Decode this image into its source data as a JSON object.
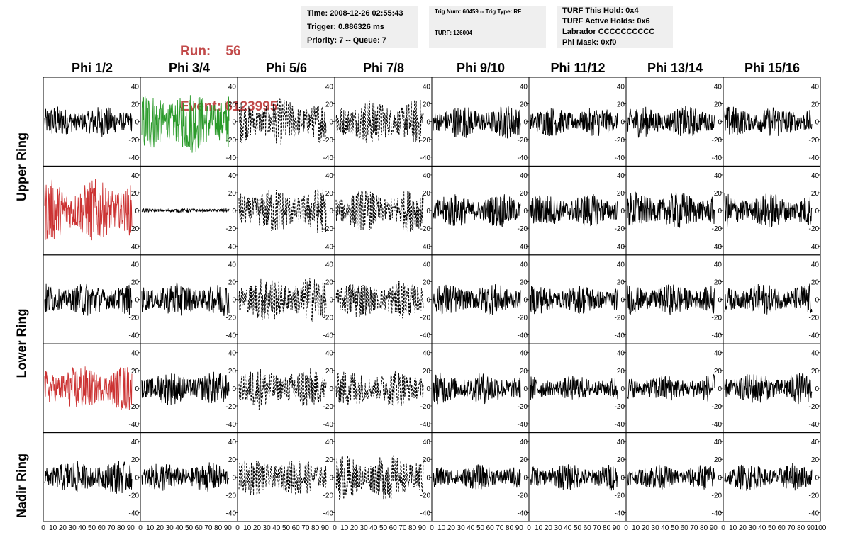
{
  "header": {
    "run_label": "Run:",
    "run_value": "56",
    "event_label": "Event:",
    "event_value": "6123995",
    "time_info": [
      "Time: 2008-12-26 02:55:43",
      "Trigger: 0.886326 ms",
      "Priority: 7 -- Queue: 7"
    ],
    "trig_info": [
      "Trig Num: 60459 -- Trig Type: RF",
      "",
      "TURF: 126004"
    ],
    "turf_info": [
      "TURF This Hold: 0x4",
      "TURF Active Holds: 0x6",
      "Labrador CCCCCCCCCC",
      "Phi Mask: 0xf0"
    ]
  },
  "columns": [
    "Phi 1/2",
    "Phi 3/4",
    "Phi 5/6",
    "Phi 7/8",
    "Phi 9/10",
    "Phi 11/12",
    "Phi 13/14",
    "Phi 15/16"
  ],
  "rings": [
    "Upper Ring",
    "Lower Ring",
    "Nadir Ring"
  ],
  "y_ticks": [
    "40",
    "20",
    "0",
    "-20",
    "-40"
  ],
  "x_ticks": [
    "0",
    "10",
    "20",
    "30",
    "40",
    "50",
    "60",
    "70",
    "80",
    "90",
    "100"
  ],
  "colors": {
    "green": "#2a9a2a",
    "red": "#cc3333",
    "black": "#000000",
    "run_text": "#c24a4a"
  },
  "chart_data": {
    "type": "line",
    "title": "",
    "xlabel": "",
    "ylabel": "",
    "xlim": [
      0,
      100
    ],
    "ylim": [
      -50,
      50
    ],
    "rows": 5,
    "cols": 8,
    "panel_styles": [
      [
        "solid",
        "solid",
        "dashed",
        "dashed",
        "solid",
        "solid",
        "solid",
        "solid"
      ],
      [
        "solid",
        "solid",
        "dashed",
        "dashed",
        "solid",
        "solid",
        "solid",
        "solid"
      ],
      [
        "solid",
        "solid",
        "dashed",
        "dashed",
        "solid",
        "solid",
        "solid",
        "solid"
      ],
      [
        "solid",
        "solid",
        "dashed",
        "dashed",
        "solid",
        "solid",
        "solid",
        "solid"
      ],
      [
        "solid",
        "solid",
        "dashed",
        "dashed",
        "solid",
        "solid",
        "solid",
        "solid"
      ]
    ],
    "panel_colors": [
      [
        "black",
        "green",
        "black",
        "black",
        "black",
        "black",
        "black",
        "black"
      ],
      [
        "red",
        "black",
        "black",
        "black",
        "black",
        "black",
        "black",
        "black"
      ],
      [
        "black",
        "black",
        "black",
        "black",
        "black",
        "black",
        "black",
        "black"
      ],
      [
        "red",
        "black",
        "black",
        "black",
        "black",
        "black",
        "black",
        "black"
      ],
      [
        "black",
        "black",
        "black",
        "black",
        "black",
        "black",
        "black",
        "black"
      ]
    ],
    "panel_amplitudes": [
      [
        15,
        30,
        22,
        22,
        16,
        14,
        15,
        15
      ],
      [
        30,
        2,
        22,
        20,
        16,
        16,
        18,
        17
      ],
      [
        16,
        16,
        22,
        18,
        15,
        14,
        15,
        15
      ],
      [
        22,
        16,
        20,
        18,
        15,
        12,
        13,
        15
      ],
      [
        16,
        14,
        18,
        22,
        12,
        13,
        12,
        13
      ]
    ]
  }
}
